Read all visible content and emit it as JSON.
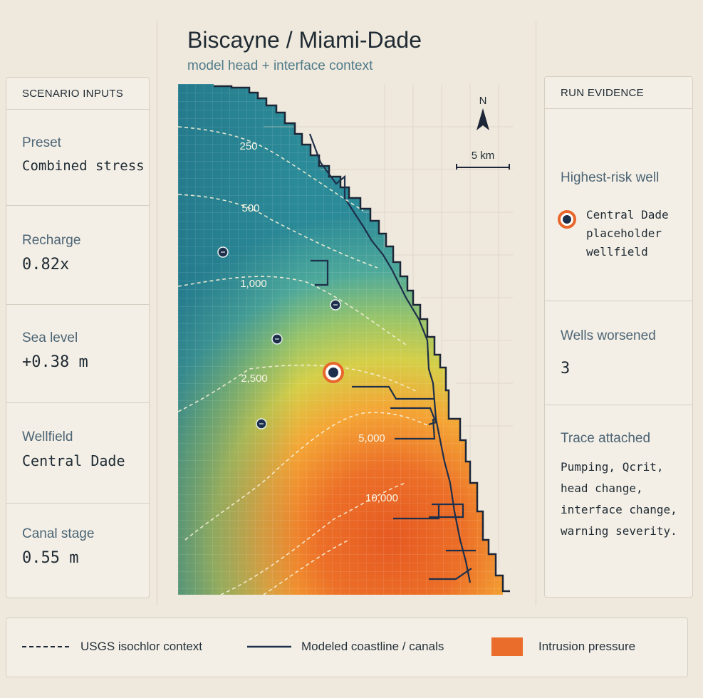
{
  "header": {
    "title": "Biscayne / Miami-Dade",
    "subtitle": "model head + interface context"
  },
  "inputs": {
    "heading": "SCENARIO INPUTS",
    "items": [
      {
        "label": "Preset",
        "value": "Combined stress"
      },
      {
        "label": "Recharge",
        "value": "0.82x"
      },
      {
        "label": "Sea level",
        "value": "+0.38 m"
      },
      {
        "label": "Wellfield",
        "value": "Central Dade"
      },
      {
        "label": "Canal stage",
        "value": "0.55 m"
      }
    ]
  },
  "map": {
    "north_label": "N",
    "scale_label": "5 km",
    "contours": [
      "250",
      "500",
      "1,000",
      "2,500",
      "5,000",
      "10,000"
    ]
  },
  "evidence": {
    "heading": "RUN EVIDENCE",
    "highest_risk_label": "Highest-risk well",
    "highest_risk_value": "Central Dade placeholder wellfield",
    "worsened_label": "Wells worsened",
    "worsened_value": "3",
    "trace_label": "Trace attached",
    "trace_value": "Pumping, Qcrit, head change, interface change, warning severity."
  },
  "legend": {
    "isochlor": "USGS isochlor context",
    "coastline": "Modeled coastline / canals",
    "intrusion": "Intrusion pressure"
  },
  "colors": {
    "background": "#efe9dd",
    "highlight_well": "#e8662a",
    "intrusion": "#ea6d2c",
    "coastline": "#1d2f4a"
  }
}
